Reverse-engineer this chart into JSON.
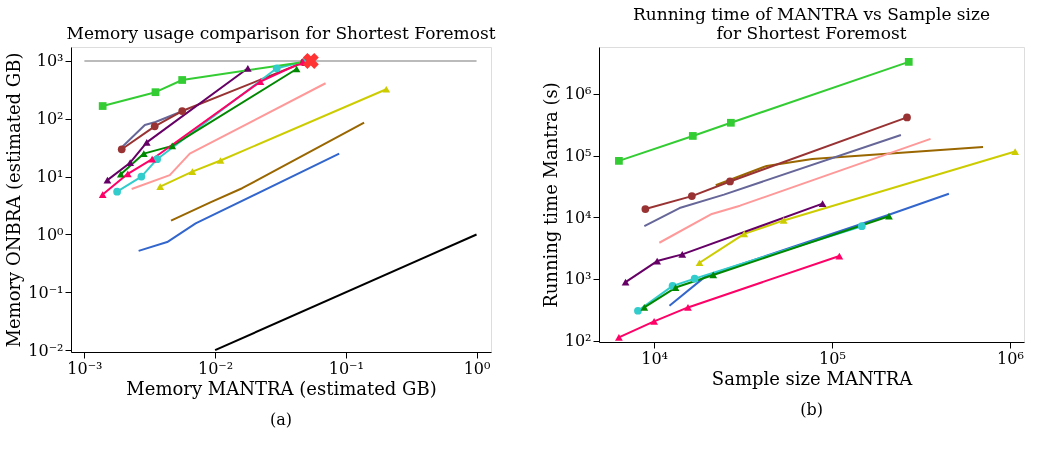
{
  "chart_data": [
    {
      "type": "line",
      "title": "Memory usage comparison for Shortest Foremost",
      "xlabel": "Memory MANTRA (estimated GB)",
      "ylabel": "Memory ONBRA (estimated GB)",
      "log": "xy",
      "grid": false,
      "legend": false,
      "xlim": [
        0.00079,
        1.29
      ],
      "ylim": [
        0.0093,
        1740
      ],
      "xticks": [
        {
          "value": 0.001,
          "label": "10⁻³"
        },
        {
          "value": 0.01,
          "label": "10⁻²"
        },
        {
          "value": 0.1,
          "label": "10⁻¹"
        },
        {
          "value": 1,
          "label": "10⁰"
        }
      ],
      "yticks": [
        {
          "value": 0.01,
          "label": "10⁻²"
        },
        {
          "value": 0.1,
          "label": "10⁻¹"
        },
        {
          "value": 1,
          "label": "10⁰"
        },
        {
          "value": 10,
          "label": "10¹"
        },
        {
          "value": 100,
          "label": "10²"
        },
        {
          "value": 1000,
          "label": "10³"
        }
      ],
      "annotations": [
        "(a)"
      ],
      "series": [
        {
          "color": "#bbbbbb",
          "marker": "none",
          "x": [
            0.001,
            1
          ],
          "values": [
            1000,
            1000
          ]
        },
        {
          "color": "#000000",
          "marker": "none",
          "x": [
            0.01,
            1
          ],
          "values": [
            0.01,
            1
          ]
        },
        {
          "color": "#3366cc",
          "marker": "none",
          "x": [
            0.0026,
            0.0043,
            0.0071,
            0.089
          ],
          "values": [
            0.52,
            0.74,
            1.55,
            25
          ]
        },
        {
          "color": "#996600",
          "marker": "none",
          "x": [
            0.0046,
            0.0092,
            0.0161,
            0.138
          ],
          "values": [
            1.73,
            3.6,
            6.3,
            86
          ]
        },
        {
          "color": "#cccc00",
          "marker": "triangle",
          "x": [
            0.0038,
            0.0067,
            0.011,
            0.204
          ],
          "values": [
            6.7,
            12.2,
            19,
            324
          ]
        },
        {
          "color": "#ff9999",
          "marker": "none",
          "x": [
            0.0023,
            0.0045,
            0.0064,
            0.07
          ],
          "values": [
            6.1,
            10.6,
            25,
            411
          ]
        },
        {
          "color": "#666699",
          "marker": "none",
          "x": [
            0.0019,
            0.0029,
            0.0035,
            0.0056
          ],
          "values": [
            31,
            78,
            88,
            135
          ]
        },
        {
          "color": "#993333",
          "marker": "circle",
          "x": [
            0.00193,
            0.00345,
            0.0056,
            0.048
          ],
          "values": [
            29.7,
            74,
            136,
            950
          ]
        },
        {
          "color": "#33cccc",
          "marker": "circle",
          "x": [
            0.00178,
            0.00273,
            0.0036,
            0.0296,
            0.05
          ],
          "values": [
            5.5,
            10,
            20,
            745,
            1000
          ]
        },
        {
          "color": "#008800",
          "marker": "triangle",
          "x": [
            0.0019,
            0.00285,
            0.0047,
            0.042
          ],
          "values": [
            11,
            25,
            34,
            725
          ]
        },
        {
          "color": "#ff0066",
          "marker": "triangle",
          "x": [
            0.00138,
            0.00215,
            0.0033,
            0.0222,
            0.047
          ],
          "values": [
            4.9,
            11.2,
            20,
            437,
            950
          ]
        },
        {
          "color": "#660066",
          "marker": "triangle",
          "x": [
            0.0015,
            0.00224,
            0.003,
            0.0178
          ],
          "values": [
            8.7,
            17.4,
            39,
            745
          ]
        },
        {
          "color": "#33cc33",
          "marker": "square",
          "x": [
            0.00138,
            0.0035,
            0.0056,
            0.054
          ],
          "values": [
            166,
            288,
            468,
            1000
          ]
        },
        {
          "type": "scatter",
          "color": "#ff3333",
          "marker": "cross",
          "x": [
            0.054
          ],
          "values": [
            1000
          ]
        }
      ]
    },
    {
      "type": "line",
      "title": "Running time of MANTRA vs Sample size\nfor Shortest Foremost",
      "xlabel": "Sample size MANTRA",
      "ylabel": "Running time Mantra (s)",
      "log": "xy",
      "grid": false,
      "legend": false,
      "xlim": [
        4900,
        1200000
      ],
      "ylim": [
        95,
        5750000
      ],
      "xticks": [
        {
          "value": 10000,
          "label": "10⁴"
        },
        {
          "value": 100000,
          "label": "10⁵"
        },
        {
          "value": 1000000,
          "label": "10⁶"
        }
      ],
      "yticks": [
        {
          "value": 100,
          "label": "10²"
        },
        {
          "value": 1000,
          "label": "10³"
        },
        {
          "value": 10000,
          "label": "10⁴"
        },
        {
          "value": 100000,
          "label": "10⁵"
        },
        {
          "value": 1000000,
          "label": "10⁶"
        }
      ],
      "annotations": [
        "(b)"
      ],
      "series": [
        {
          "color": "#3366cc",
          "marker": "none",
          "x": [
            12200,
            19600,
            205000,
            454000
          ],
          "values": [
            367,
            1120,
            10800,
            24000
          ]
        },
        {
          "color": "#996600",
          "marker": "none",
          "x": [
            22200,
            42900,
            77400,
            706000
          ],
          "values": [
            33000,
            68000,
            88000,
            138000
          ]
        },
        {
          "color": "#cccc00",
          "marker": "triangle",
          "x": [
            18000,
            32100,
            53500,
            1070000
          ],
          "values": [
            1830,
            5370,
            8880,
            116000
          ]
        },
        {
          "color": "#ff9999",
          "marker": "none",
          "x": [
            10700,
            21100,
            30400,
            358000
          ],
          "values": [
            3860,
            11300,
            15400,
            186000
          ]
        },
        {
          "color": "#666699",
          "marker": "none",
          "x": [
            8810,
            13900,
            24700,
            244000
          ],
          "values": [
            7160,
            14100,
            23300,
            215000
          ]
        },
        {
          "color": "#993333",
          "marker": "circle",
          "x": [
            8930,
            16300,
            26700,
            264000
          ],
          "values": [
            13600,
            22000,
            38000,
            415000
          ]
        },
        {
          "color": "#33cccc",
          "marker": "circle",
          "x": [
            8110,
            12700,
            16900,
            147000
          ],
          "values": [
            305,
            770,
            1010,
            7160
          ]
        },
        {
          "color": "#008800",
          "marker": "triangle",
          "x": [
            8810,
            13200,
            21500,
            209000
          ],
          "values": [
            345,
            725,
            1160,
            10400
          ]
        },
        {
          "color": "#ff0066",
          "marker": "triangle",
          "x": [
            6340,
            10000,
            15500,
            110000
          ],
          "values": [
            113,
            205,
            345,
            2350
          ]
        },
        {
          "color": "#660066",
          "marker": "triangle",
          "x": [
            6910,
            10400,
            14400,
            88500
          ],
          "values": [
            890,
            1950,
            2500,
            16600
          ]
        },
        {
          "color": "#33cc33",
          "marker": "square",
          "x": [
            6340,
            16500,
            27000,
            270000
          ],
          "values": [
            82000,
            208000,
            340000,
            3300000
          ]
        }
      ]
    }
  ]
}
